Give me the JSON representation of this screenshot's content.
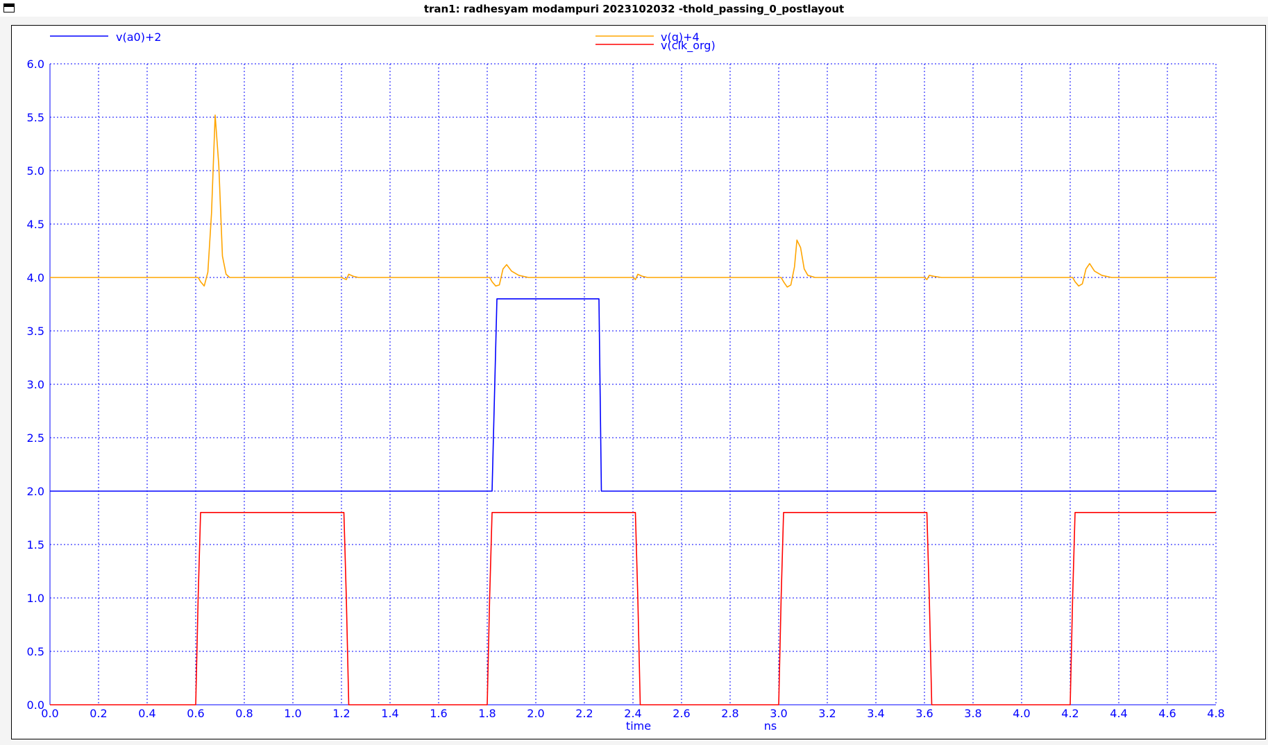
{
  "window": {
    "title": "tran1: radhesyam modampuri 2023102032 -thold_passing_0_postlayout"
  },
  "icons": {
    "menu": "window-menu-icon"
  },
  "colors": {
    "axis": "#0000ff",
    "grid": "#0000ff",
    "background": "#ffffff"
  },
  "chart_data": {
    "type": "line",
    "title": "tran1: radhesyam modampuri 2023102032 -thold_passing_0_postlayout",
    "xlabel": "time",
    "xunit": "ns",
    "ylabel": "",
    "xlim": [
      0.0,
      4.8
    ],
    "ylim": [
      0.0,
      6.0
    ],
    "grid": true,
    "legend_placement": "top",
    "x_ticks": [
      "0.0",
      "0.2",
      "0.4",
      "0.6",
      "0.8",
      "1.0",
      "1.2",
      "1.4",
      "1.6",
      "1.8",
      "2.0",
      "2.2",
      "2.4",
      "2.6",
      "2.8",
      "3.0",
      "3.2",
      "3.4",
      "3.6",
      "3.8",
      "4.0",
      "4.2",
      "4.4",
      "4.6",
      "4.8"
    ],
    "y_ticks": [
      "0.0",
      "0.5",
      "1.0",
      "1.5",
      "2.0",
      "2.5",
      "3.0",
      "3.5",
      "4.0",
      "4.5",
      "5.0",
      "5.5",
      "6.0"
    ],
    "series": [
      {
        "name": "v(a0)+2",
        "color": "#0000ff",
        "x": [
          0.0,
          1.82,
          1.84,
          2.26,
          2.27,
          4.8
        ],
        "y": [
          2.0,
          2.0,
          3.8,
          3.8,
          2.0,
          2.0
        ]
      },
      {
        "name": "v(q)+4",
        "color": "#ffa500",
        "x": [
          0.0,
          0.6,
          0.61,
          0.62,
          0.635,
          0.65,
          0.665,
          0.68,
          0.695,
          0.71,
          0.725,
          0.74,
          0.76,
          1.2,
          1.22,
          1.23,
          1.25,
          1.27,
          1.8,
          1.81,
          1.82,
          1.835,
          1.85,
          1.865,
          1.88,
          1.9,
          1.93,
          1.97,
          2.0,
          2.4,
          2.41,
          2.42,
          2.44,
          2.46,
          3.0,
          3.01,
          3.02,
          3.035,
          3.05,
          3.065,
          3.075,
          3.09,
          3.105,
          3.12,
          3.15,
          3.2,
          3.6,
          3.61,
          3.62,
          3.64,
          3.67,
          4.2,
          4.21,
          4.22,
          4.235,
          4.25,
          4.265,
          4.28,
          4.3,
          4.33,
          4.37,
          4.8
        ],
        "y": [
          4.0,
          4.0,
          4.0,
          3.96,
          3.92,
          4.05,
          4.6,
          5.52,
          5.05,
          4.2,
          4.03,
          4.0,
          4.0,
          4.0,
          3.98,
          4.03,
          4.01,
          4.0,
          4.0,
          4.0,
          3.96,
          3.92,
          3.93,
          4.08,
          4.12,
          4.06,
          4.02,
          4.0,
          4.0,
          4.0,
          3.98,
          4.03,
          4.01,
          4.0,
          4.0,
          4.0,
          3.96,
          3.91,
          3.93,
          4.1,
          4.35,
          4.28,
          4.08,
          4.02,
          4.0,
          4.0,
          4.0,
          3.98,
          4.02,
          4.01,
          4.0,
          4.0,
          4.0,
          3.96,
          3.92,
          3.94,
          4.08,
          4.13,
          4.06,
          4.02,
          4.0,
          4.0
        ]
      },
      {
        "name": "v(clk_org)",
        "color": "#ff0000",
        "x": [
          0.0,
          0.6,
          0.61,
          0.62,
          1.21,
          1.22,
          1.23,
          1.8,
          1.81,
          1.82,
          2.41,
          2.42,
          2.43,
          3.0,
          3.01,
          3.02,
          3.61,
          3.62,
          3.63,
          4.2,
          4.21,
          4.22,
          4.8
        ],
        "y": [
          0.0,
          0.0,
          1.0,
          1.8,
          1.8,
          1.0,
          0.0,
          0.0,
          1.0,
          1.8,
          1.8,
          1.0,
          0.0,
          0.0,
          1.0,
          1.8,
          1.8,
          1.0,
          0.0,
          0.0,
          1.0,
          1.8,
          1.8
        ]
      }
    ]
  }
}
